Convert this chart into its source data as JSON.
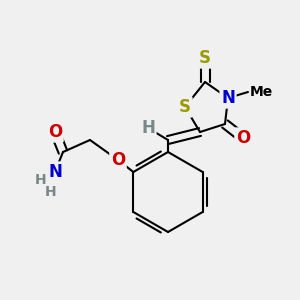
{
  "background_color": "#f0f0f0",
  "fig_size": [
    3.0,
    3.0
  ],
  "dpi": 100,
  "bond_color": "#000000",
  "bond_lw": 1.5,
  "atom_bg_color": "#f0f0f0",
  "colors": {
    "S": "#999900",
    "N": "#0000cc",
    "O": "#cc0000",
    "H": "#778888",
    "C": "#000000"
  },
  "fontsize": 11
}
